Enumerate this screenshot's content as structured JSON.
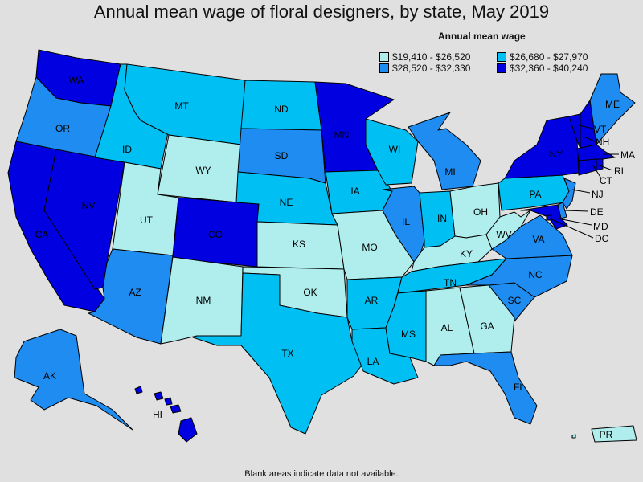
{
  "title": "Annual mean wage of floral designers, by state, May 2019",
  "legend": {
    "title": "Annual mean wage",
    "items": [
      {
        "label": "$19,410 - $26,520",
        "color": "#b0eeee"
      },
      {
        "label": "$26,680 - $27,970",
        "color": "#00bff3"
      },
      {
        "label": "$28,520 - $32,330",
        "color": "#1e8cf0"
      },
      {
        "label": "$32,360 - $40,240",
        "color": "#0000e0"
      }
    ]
  },
  "footnote": "Blank areas indicate data not available.",
  "states": {
    "WA": "$32,360 - $40,240",
    "OR": "$28,520 - $32,330",
    "CA": "$32,360 - $40,240",
    "NV": "$32,360 - $40,240",
    "ID": "$26,680 - $27,970",
    "MT": "$26,680 - $27,970",
    "WY": "$19,410 - $26,520",
    "UT": "$19,410 - $26,520",
    "AZ": "$28,520 - $32,330",
    "CO": "$32,360 - $40,240",
    "NM": "$19,410 - $26,520",
    "ND": "$26,680 - $27,970",
    "SD": "$28,520 - $32,330",
    "NE": "$26,680 - $27,970",
    "KS": "$19,410 - $26,520",
    "OK": "$19,410 - $26,520",
    "TX": "$26,680 - $27,970",
    "MN": "$32,360 - $40,240",
    "IA": "$26,680 - $27,970",
    "MO": "$19,410 - $26,520",
    "AR": "$26,680 - $27,970",
    "LA": "$26,680 - $27,970",
    "WI": "$26,680 - $27,970",
    "IL": "$28,520 - $32,330",
    "MI": "$28,520 - $32,330",
    "IN": "$26,680 - $27,970",
    "OH": "$19,410 - $26,520",
    "KY": "$19,410 - $26,520",
    "TN": "$26,680 - $27,970",
    "MS": "$26,680 - $27,970",
    "AL": "$19,410 - $26,520",
    "GA": "$19,410 - $26,520",
    "FL": "$28,520 - $32,330",
    "SC": "$28,520 - $32,330",
    "NC": "$28,520 - $32,330",
    "VA": "$28,520 - $32,330",
    "WV": "$19,410 - $26,520",
    "PA": "$26,680 - $27,970",
    "NY": "$32,360 - $40,240",
    "NJ": "$28,520 - $32,330",
    "DE": "$28,520 - $32,330",
    "MD": "$32,360 - $40,240",
    "DC": "$32,360 - $40,240",
    "CT": "$32,360 - $40,240",
    "RI": "$32,360 - $40,240",
    "MA": "$32,360 - $40,240",
    "VT": "$32,360 - $40,240",
    "NH": "$32,360 - $40,240",
    "ME": "$28,520 - $32,330",
    "AK": "$28,520 - $32,330",
    "HI": "$32,360 - $40,240",
    "PR": "$19,410 - $26,520"
  }
}
